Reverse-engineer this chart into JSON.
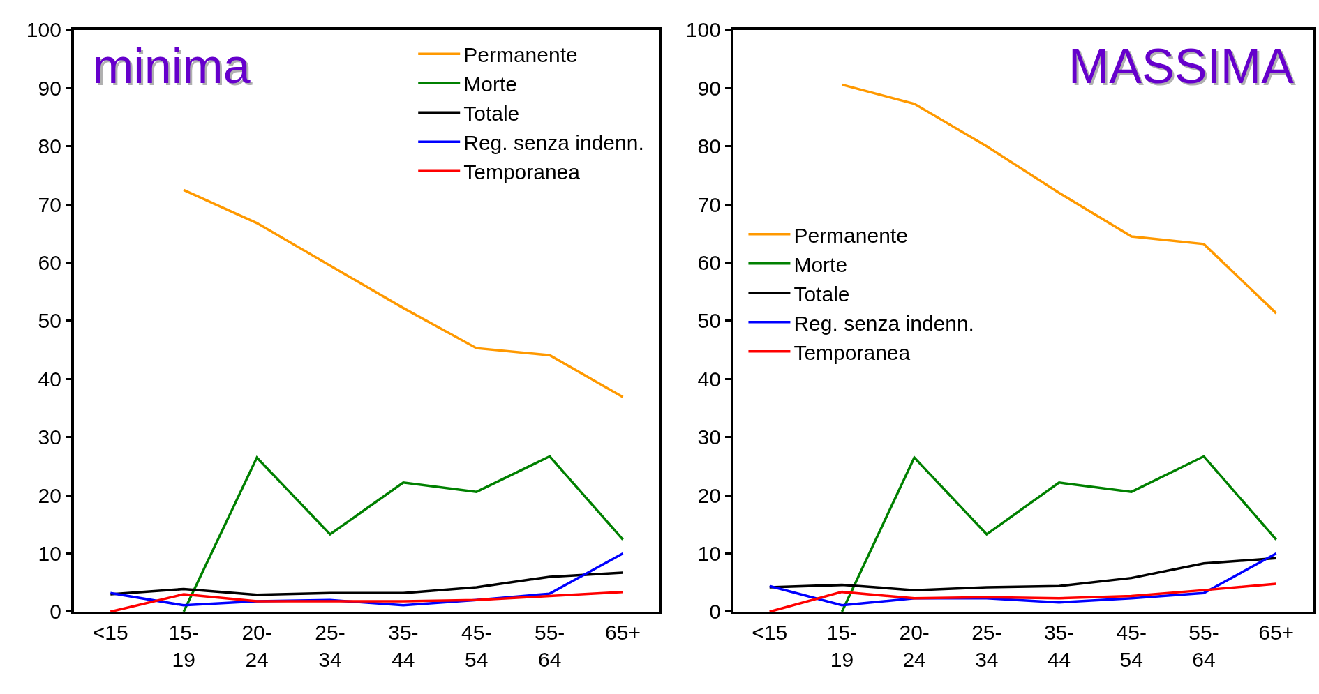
{
  "chart_data": [
    {
      "type": "line",
      "title": "minima",
      "categories": [
        "<15",
        "15-19",
        "20-24",
        "25-34",
        "35-44",
        "45-54",
        "55-64",
        "65+"
      ],
      "ylim": [
        0,
        100
      ],
      "yticks": [
        0,
        10,
        20,
        30,
        40,
        50,
        60,
        70,
        80,
        90,
        100
      ],
      "legend": "top right",
      "marker": "none",
      "line_style": "solid",
      "series": [
        {
          "name": "Permanente",
          "color": "#ff9900",
          "values": [
            null,
            72.5,
            66.8,
            59.5,
            52.2,
            45.3,
            44.1,
            36.9
          ]
        },
        {
          "name": "Morte",
          "color": "#008000",
          "values": [
            null,
            0,
            26.5,
            13.3,
            22.2,
            20.6,
            26.7,
            12.4
          ]
        },
        {
          "name": "Totale",
          "color": "#000000",
          "values": [
            3.0,
            3.9,
            2.9,
            3.2,
            3.2,
            4.2,
            6.0,
            6.7
          ]
        },
        {
          "name": "Reg. senza indenn.",
          "color": "#0000ff",
          "values": [
            3.2,
            1.1,
            1.8,
            2.0,
            1.1,
            2.0,
            3.1,
            10.0
          ]
        },
        {
          "name": "Temporanea",
          "color": "#ff0000",
          "values": [
            0,
            3.0,
            1.8,
            1.8,
            1.8,
            2.0,
            2.7,
            3.4
          ]
        }
      ]
    },
    {
      "type": "line",
      "title": "MASSIMA",
      "categories": [
        "<15",
        "15-19",
        "20-24",
        "25-34",
        "35-44",
        "45-54",
        "55-64",
        "65+"
      ],
      "ylim": [
        0,
        100
      ],
      "yticks": [
        0,
        10,
        20,
        30,
        40,
        50,
        60,
        70,
        80,
        90,
        100
      ],
      "legend": "left",
      "marker": "none",
      "line_style": "solid",
      "series": [
        {
          "name": "Permanente",
          "color": "#ff9900",
          "values": [
            null,
            90.6,
            87.3,
            80.0,
            72.0,
            64.5,
            63.2,
            51.3
          ]
        },
        {
          "name": "Morte",
          "color": "#008000",
          "values": [
            null,
            0,
            26.5,
            13.3,
            22.2,
            20.6,
            26.7,
            12.4
          ]
        },
        {
          "name": "Totale",
          "color": "#000000",
          "values": [
            4.2,
            4.6,
            3.7,
            4.2,
            4.4,
            5.8,
            8.3,
            9.2
          ]
        },
        {
          "name": "Reg. senza indenn.",
          "color": "#0000ff",
          "values": [
            4.4,
            1.1,
            2.3,
            2.3,
            1.6,
            2.3,
            3.2,
            10.0
          ]
        },
        {
          "name": "Temporanea",
          "color": "#ff0000",
          "values": [
            0,
            3.4,
            2.3,
            2.5,
            2.3,
            2.7,
            3.7,
            4.8
          ]
        }
      ]
    }
  ]
}
